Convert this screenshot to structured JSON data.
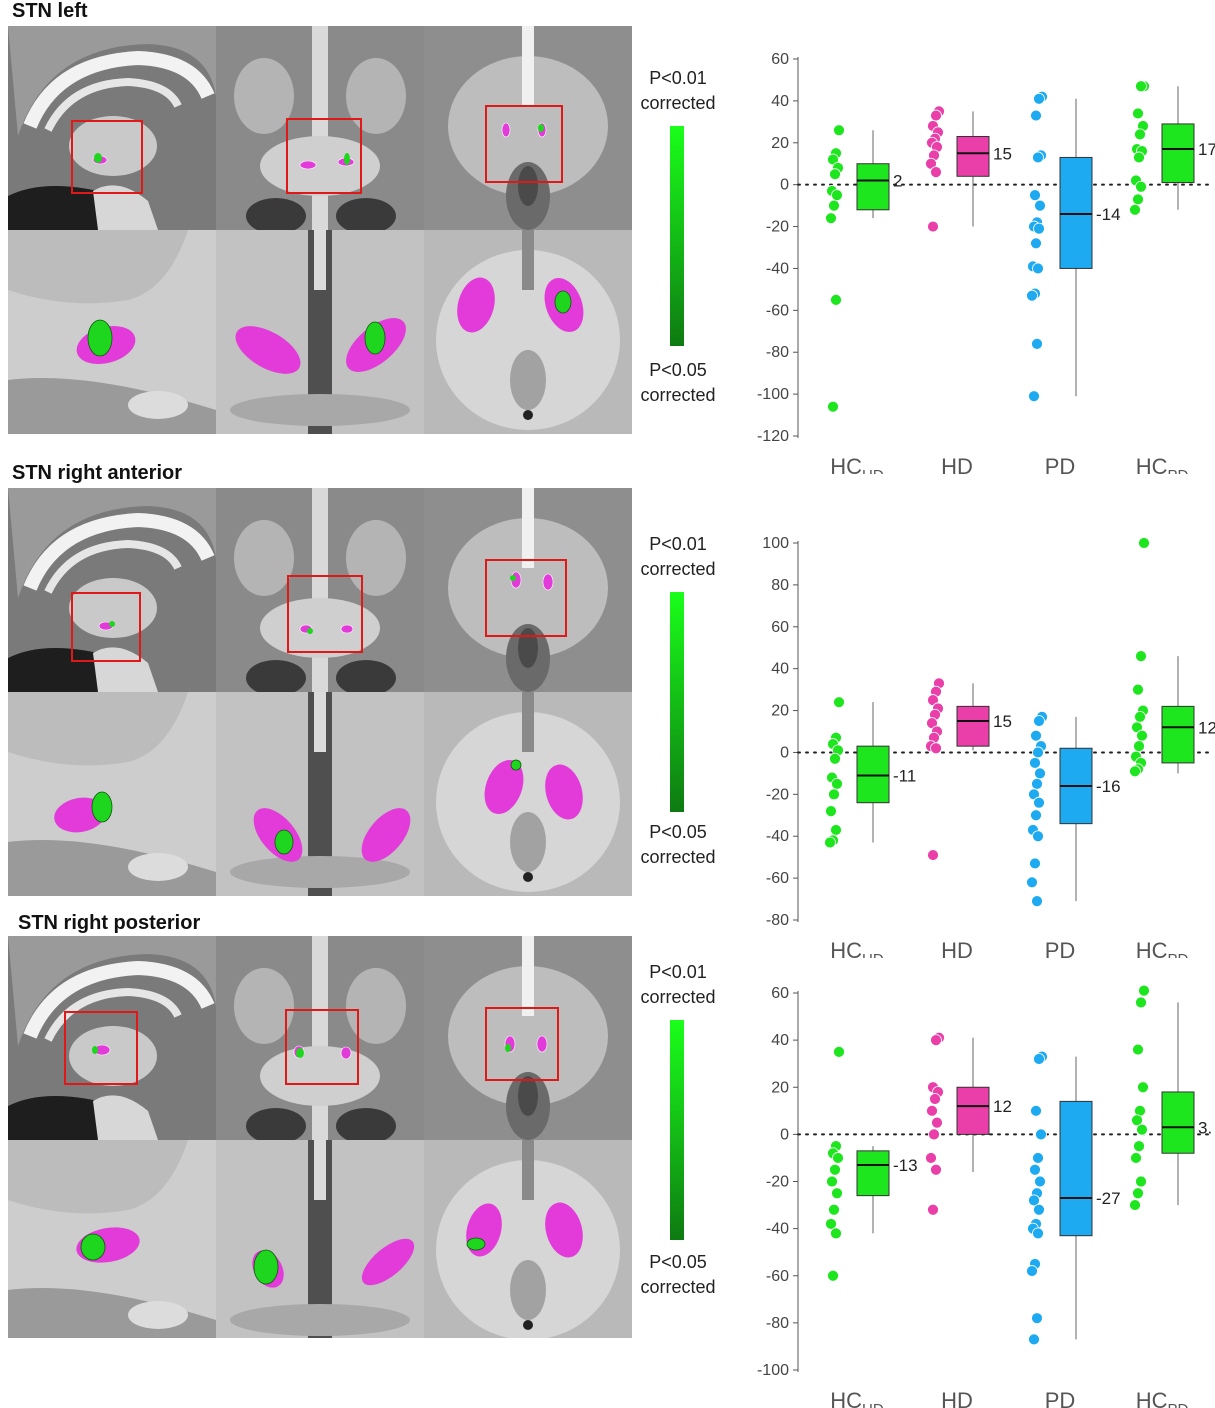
{
  "colorbar": {
    "top": [
      "P<0.01",
      "corrected"
    ],
    "bottom": [
      "P<0.05",
      "corrected"
    ]
  },
  "groups": [
    {
      "main": "HC",
      "sub": "HD"
    },
    {
      "main": "HD",
      "sub": ""
    },
    {
      "main": "PD",
      "sub": ""
    },
    {
      "main": "HC",
      "sub": "PD"
    }
  ],
  "colors": {
    "hc": "#1ee61e",
    "hd": "#ea3fa8",
    "pd": "#1eaaf0",
    "roi": "#e33bd9",
    "cluster": "#1ed61e",
    "box_frame": "#e01818"
  },
  "panels": [
    {
      "title": "STN left",
      "chart_data": {
        "type": "box",
        "ylim": [
          -120,
          60
        ],
        "yticks": [
          60,
          40,
          20,
          0,
          -20,
          -40,
          -60,
          -80,
          -100,
          -120
        ],
        "zero_line": true,
        "series": [
          {
            "group": "HC_HD",
            "median": 2,
            "q1": -12,
            "q3": 10,
            "whisker_low": -16,
            "whisker_high": 26,
            "points": [
              26,
              15,
              12,
              8,
              5,
              -3,
              -5,
              -10,
              -16,
              -55,
              -106
            ],
            "label": "2"
          },
          {
            "group": "HD",
            "median": 15,
            "q1": 4,
            "q3": 23,
            "whisker_low": -20,
            "whisker_high": 35,
            "points": [
              35,
              33,
              28,
              25,
              22,
              20,
              18,
              14,
              10,
              6,
              -20
            ],
            "label": "15"
          },
          {
            "group": "PD",
            "median": -14,
            "q1": -40,
            "q3": 13,
            "whisker_low": -101,
            "whisker_high": 41,
            "points": [
              42,
              41,
              33,
              14,
              13,
              -5,
              -10,
              -18,
              -20,
              -21,
              -28,
              -39,
              -40,
              -52,
              -53,
              -76,
              -101
            ],
            "label": "-14"
          },
          {
            "group": "HC_PD",
            "median": 17,
            "q1": 1,
            "q3": 29,
            "whisker_low": -12,
            "whisker_high": 47,
            "points": [
              47,
              47,
              34,
              28,
              24,
              17,
              16,
              13,
              2,
              -1,
              -7,
              -12
            ],
            "label": "17"
          }
        ]
      }
    },
    {
      "title": "STN right anterior",
      "chart_data": {
        "type": "box",
        "ylim": [
          -80,
          100
        ],
        "yticks": [
          100,
          80,
          60,
          40,
          20,
          0,
          -20,
          -40,
          -60,
          -80
        ],
        "zero_line": true,
        "series": [
          {
            "group": "HC_HD",
            "median": -11,
            "q1": -24,
            "q3": 3,
            "whisker_low": -43,
            "whisker_high": 24,
            "points": [
              24,
              7,
              4,
              1,
              -3,
              -12,
              -15,
              -20,
              -28,
              -37,
              -42,
              -43
            ],
            "label": "-11"
          },
          {
            "group": "HD",
            "median": 15,
            "q1": 3,
            "q3": 22,
            "whisker_low": 1,
            "whisker_high": 33,
            "points": [
              33,
              29,
              25,
              21,
              18,
              14,
              10,
              7,
              3,
              2,
              -49
            ],
            "label": "15"
          },
          {
            "group": "PD",
            "median": -16,
            "q1": -34,
            "q3": 2,
            "whisker_low": -71,
            "whisker_high": 17,
            "points": [
              17,
              15,
              8,
              3,
              0,
              -5,
              -10,
              -15,
              -20,
              -24,
              -30,
              -37,
              -40,
              -53,
              -62,
              -71
            ],
            "label": "-16"
          },
          {
            "group": "HC_PD",
            "median": 12,
            "q1": -5,
            "q3": 22,
            "whisker_low": -10,
            "whisker_high": 46,
            "points": [
              100,
              46,
              30,
              20,
              17,
              12,
              8,
              3,
              -2,
              -5,
              -8,
              -9
            ],
            "label": "12"
          }
        ]
      }
    },
    {
      "title": "STN right posterior",
      "chart_data": {
        "type": "box",
        "ylim": [
          -100,
          60
        ],
        "yticks": [
          60,
          40,
          20,
          0,
          -20,
          -40,
          -60,
          -80,
          -100
        ],
        "zero_line": true,
        "series": [
          {
            "group": "HC_HD",
            "median": -13,
            "q1": -26,
            "q3": -7,
            "whisker_low": -42,
            "whisker_high": -5,
            "points": [
              35,
              -5,
              -8,
              -10,
              -15,
              -20,
              -25,
              -32,
              -38,
              -42,
              -60
            ],
            "label": "-13"
          },
          {
            "group": "HD",
            "median": 12,
            "q1": 0,
            "q3": 20,
            "whisker_low": -16,
            "whisker_high": 41,
            "points": [
              41,
              40,
              20,
              18,
              15,
              10,
              5,
              0,
              -10,
              -15,
              -32
            ],
            "label": "12"
          },
          {
            "group": "PD",
            "median": -27,
            "q1": -43,
            "q3": 14,
            "whisker_low": -87,
            "whisker_high": 33,
            "points": [
              33,
              32,
              10,
              0,
              -10,
              -15,
              -20,
              -25,
              -28,
              -32,
              -38,
              -40,
              -42,
              -55,
              -58,
              -78,
              -87
            ],
            "label": "-27"
          },
          {
            "group": "HC_PD",
            "median": 3,
            "q1": -8,
            "q3": 18,
            "whisker_low": -30,
            "whisker_high": 56,
            "points": [
              61,
              56,
              36,
              20,
              10,
              6,
              2,
              -5,
              -10,
              -20,
              -25,
              -30
            ],
            "label": "3."
          }
        ]
      }
    }
  ]
}
